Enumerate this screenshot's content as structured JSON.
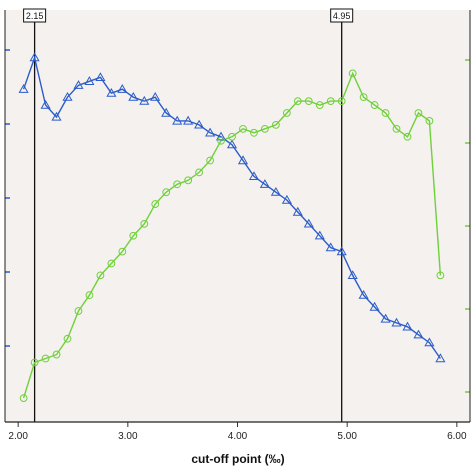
{
  "chart_data": {
    "type": "line",
    "xlabel": "cut-off point (‰)",
    "xlim": [
      1.88,
      6.12
    ],
    "ylim": [
      0,
      1
    ],
    "x_ticks": [
      "2.00",
      "3.00",
      "4.00",
      "5.00",
      "6.00"
    ],
    "grid": false,
    "legend": "none",
    "background_color": "#f4f1ee",
    "reference_lines": [
      {
        "x": 2.15,
        "label": "2.15"
      },
      {
        "x": 4.95,
        "label": "4.95"
      }
    ],
    "series": [
      {
        "marker": "triangle",
        "color": "#2b5cc9",
        "x": [
          2.05,
          2.15,
          2.25,
          2.35,
          2.45,
          2.55,
          2.65,
          2.75,
          2.85,
          2.95,
          3.05,
          3.15,
          3.25,
          3.35,
          3.45,
          3.55,
          3.65,
          3.75,
          3.85,
          3.95,
          4.05,
          4.15,
          4.25,
          4.35,
          4.45,
          4.55,
          4.65,
          4.75,
          4.85,
          4.95,
          5.05,
          5.15,
          5.25,
          5.35,
          5.45,
          5.55,
          5.65,
          5.75,
          5.85
        ],
        "values": [
          0.81,
          0.89,
          0.77,
          0.74,
          0.79,
          0.82,
          0.83,
          0.84,
          0.8,
          0.81,
          0.79,
          0.78,
          0.79,
          0.75,
          0.73,
          0.73,
          0.72,
          0.7,
          0.69,
          0.67,
          0.63,
          0.59,
          0.57,
          0.55,
          0.53,
          0.5,
          0.47,
          0.44,
          0.41,
          0.4,
          0.34,
          0.29,
          0.26,
          0.23,
          0.22,
          0.21,
          0.19,
          0.17,
          0.13
        ]
      },
      {
        "marker": "circle",
        "color": "#6fd13a",
        "x": [
          2.05,
          2.15,
          2.25,
          2.35,
          2.45,
          2.55,
          2.65,
          2.75,
          2.85,
          2.95,
          3.05,
          3.15,
          3.25,
          3.35,
          3.45,
          3.55,
          3.65,
          3.75,
          3.85,
          3.95,
          4.05,
          4.15,
          4.25,
          4.35,
          4.45,
          4.55,
          4.65,
          4.75,
          4.85,
          4.95,
          5.05,
          5.15,
          5.25,
          5.35,
          5.45,
          5.55,
          5.65,
          5.75,
          5.85
        ],
        "values": [
          0.03,
          0.12,
          0.13,
          0.14,
          0.18,
          0.25,
          0.29,
          0.34,
          0.37,
          0.4,
          0.44,
          0.47,
          0.52,
          0.55,
          0.57,
          0.58,
          0.6,
          0.63,
          0.68,
          0.69,
          0.71,
          0.7,
          0.71,
          0.72,
          0.75,
          0.78,
          0.78,
          0.77,
          0.78,
          0.78,
          0.85,
          0.79,
          0.77,
          0.75,
          0.71,
          0.69,
          0.75,
          0.73,
          0.34
        ]
      }
    ]
  }
}
